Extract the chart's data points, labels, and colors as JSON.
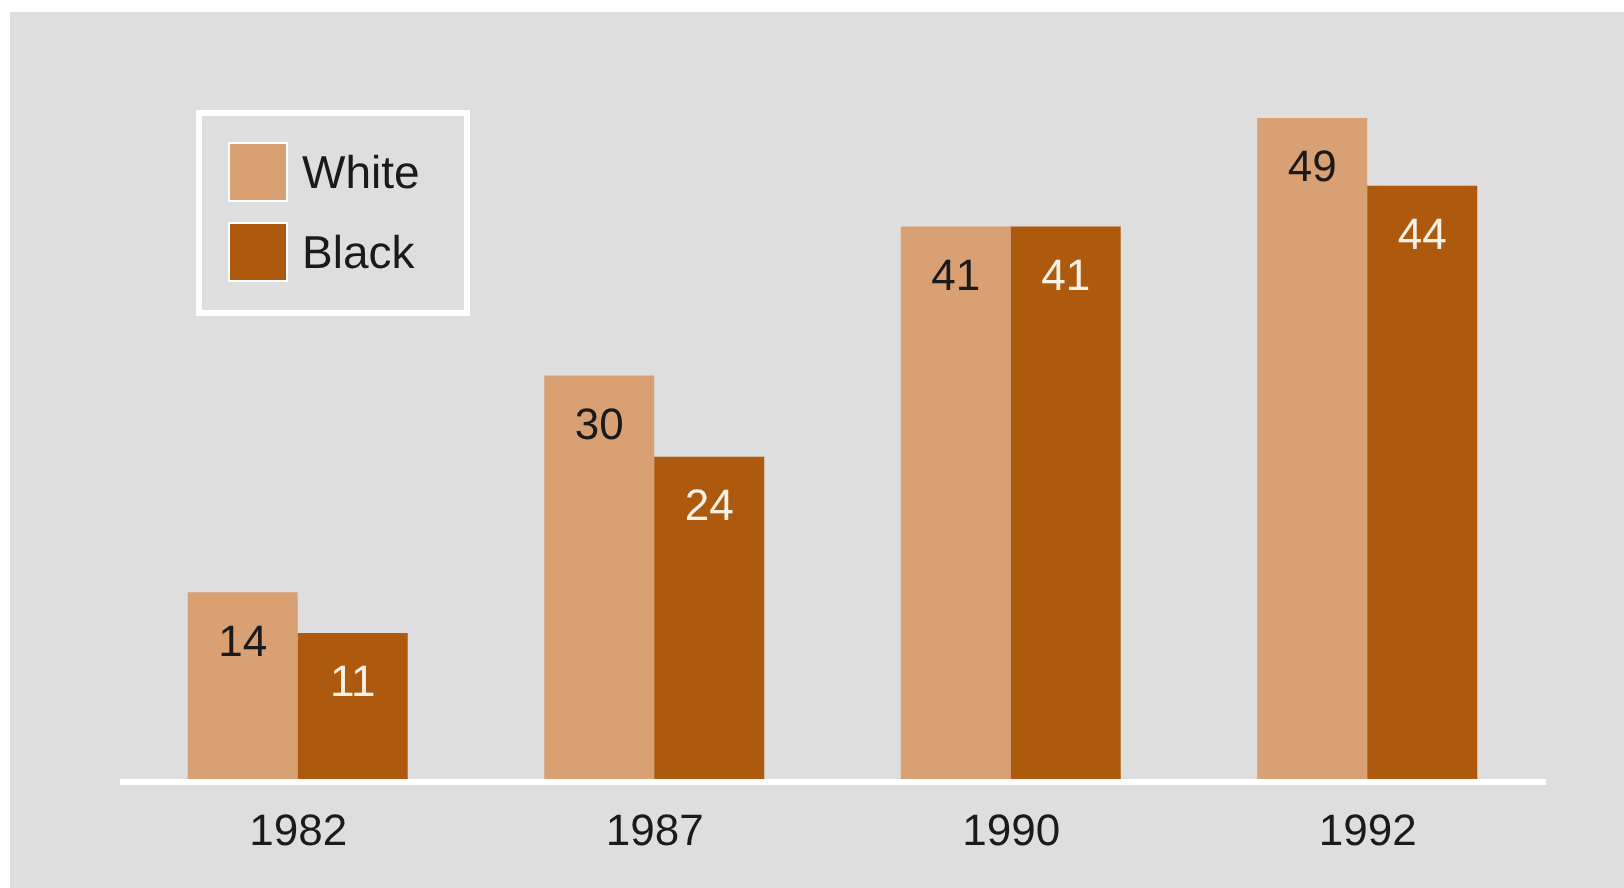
{
  "chart_data": {
    "type": "bar",
    "categories": [
      "1982",
      "1987",
      "1990",
      "1992"
    ],
    "series": [
      {
        "name": "White",
        "color": "#d8a073",
        "values": [
          14,
          30,
          41,
          49
        ]
      },
      {
        "name": "Black",
        "color": "#ad5a0f",
        "values": [
          11,
          24,
          41,
          44
        ]
      }
    ],
    "data_labels": true,
    "legend": "top left",
    "tick_labels": "x"
  }
}
